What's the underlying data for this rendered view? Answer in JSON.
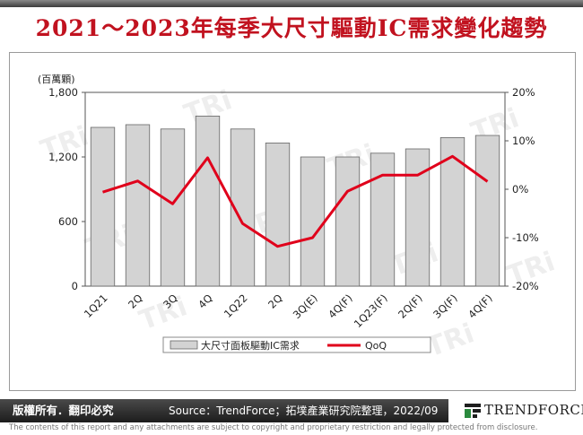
{
  "title": "2021～2023年每季大尺寸驅動IC需求變化趨勢",
  "footer": {
    "rights": "版權所有．翻印必究",
    "source": "Source：TrendForce；拓墣產業研究院整理，2022/09",
    "logo_text": "TRENDFORCE",
    "disclaimer": "The contents of this report and any attachments are subject to copyright and proprietary restriction and legally protected from disclosure."
  },
  "colors": {
    "title": "#c1121f",
    "bars": "#d3d3d3",
    "bar_stroke": "#666666",
    "line": "#e0001b"
  },
  "chart_data": {
    "type": "bar",
    "categories": [
      "1Q21",
      "2Q",
      "3Q",
      "4Q",
      "1Q22",
      "2Q",
      "3Q(E)",
      "4Q(F)",
      "1Q23(F)",
      "2Q(F)",
      "3Q(F)",
      "4Q(F)"
    ],
    "series": [
      {
        "name": "大尺寸面板驅動IC需求",
        "type": "bar",
        "axis": "left",
        "values": [
          1475,
          1500,
          1460,
          1580,
          1460,
          1330,
          1200,
          1200,
          1235,
          1275,
          1380,
          1400
        ]
      },
      {
        "name": "QoQ",
        "type": "line",
        "axis": "right",
        "values": [
          -0.6,
          1.7,
          -3.0,
          6.5,
          -7.1,
          -11.8,
          -10.0,
          -0.4,
          2.9,
          2.9,
          6.8,
          1.6
        ]
      }
    ],
    "yunit_label": "(百萬顆)",
    "ylim": [
      0,
      1800
    ],
    "yticks": [
      "0",
      "600",
      "1,200",
      "1,800"
    ],
    "ylim_right": [
      -20,
      20
    ],
    "yticks_right": [
      "-20%",
      "-10%",
      "0%",
      "10%",
      "20%"
    ],
    "grid": false,
    "legend_position": "bottom"
  }
}
